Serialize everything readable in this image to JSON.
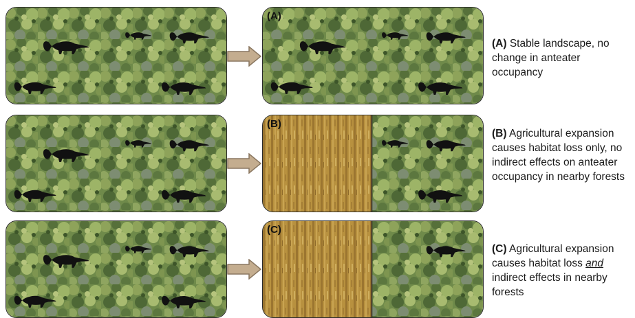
{
  "scenarios": [
    {
      "label": "(A)",
      "caption_key": "(A)",
      "caption_text": " Stable landscape, no change in anteater occupancy"
    },
    {
      "label": "(B)",
      "caption_key": "(B)",
      "caption_text": " Agricultural expansion causes habitat loss only, no indirect effects on anteater occupancy in nearby forests"
    },
    {
      "label": "(C)",
      "caption_key": "(C)",
      "caption_pre": " Agricultural expansion causes habitat loss ",
      "caption_emph": "and",
      "caption_post": " indirect effects in nearby forests"
    }
  ],
  "colors": {
    "forest_base": "#6f8a4a",
    "forest_dark": "#3f5a2e",
    "forest_light": "#a7b96a",
    "field": "#b8913f",
    "arrow_fill": "#c4ad8f",
    "arrow_stroke": "#8a7760",
    "anteater": "#111111"
  },
  "icons": {
    "anteater": "anteater-silhouette-icon",
    "arrow": "right-arrow-icon"
  }
}
